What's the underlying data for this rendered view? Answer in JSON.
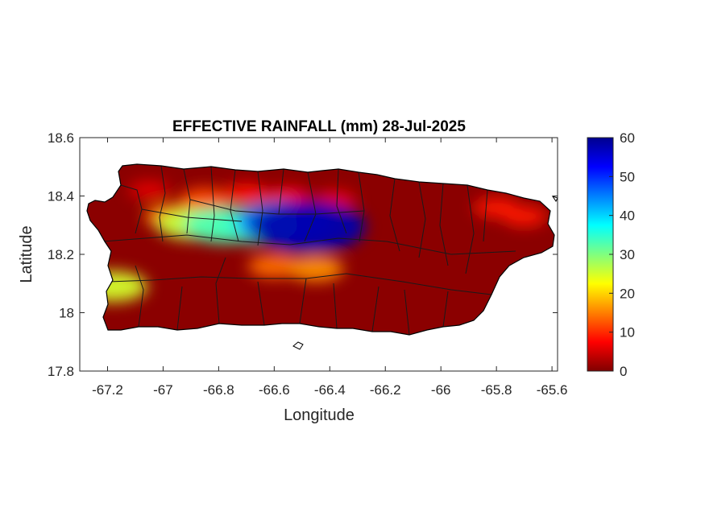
{
  "chart_data": {
    "type": "heatmap",
    "title": "EFFECTIVE RAINFALL (mm) 28-Jul-2025",
    "xlabel": "Longitude",
    "ylabel": "Latitude",
    "xlim": [
      -67.3,
      -65.58
    ],
    "ylim": [
      17.8,
      18.6
    ],
    "x_ticks": [
      "-67.2",
      "-67",
      "-66.8",
      "-66.6",
      "-66.4",
      "-66.2",
      "-66",
      "-65.8",
      "-65.6"
    ],
    "x_tick_values": [
      -67.2,
      -67.0,
      -66.8,
      -66.6,
      -66.4,
      -66.2,
      -66.0,
      -65.8,
      -65.6
    ],
    "y_ticks": [
      "18.6",
      "18.4",
      "18.2",
      "18",
      "17.8"
    ],
    "y_tick_values": [
      18.6,
      18.4,
      18.2,
      18.0,
      17.8
    ],
    "colorbar": {
      "colormap": "jet",
      "range": [
        0,
        60
      ],
      "ticks": [
        "60",
        "50",
        "40",
        "30",
        "20",
        "10",
        "0"
      ],
      "tick_values": [
        60,
        50,
        40,
        30,
        20,
        10,
        0
      ]
    },
    "grid": false,
    "rain_cells": [
      {
        "lon": -66.48,
        "lat": 18.295,
        "value": 58
      },
      {
        "lon": -66.56,
        "lat": 18.31,
        "value": 45
      },
      {
        "lon": -66.66,
        "lat": 18.3,
        "value": 34
      },
      {
        "lon": -66.78,
        "lat": 18.3,
        "value": 33
      },
      {
        "lon": -66.9,
        "lat": 18.305,
        "value": 26
      },
      {
        "lon": -66.97,
        "lat": 18.33,
        "value": 15
      },
      {
        "lon": -66.85,
        "lat": 18.39,
        "value": 12
      },
      {
        "lon": -66.7,
        "lat": 18.41,
        "value": 8
      },
      {
        "lon": -66.55,
        "lat": 18.4,
        "value": 7
      },
      {
        "lon": -66.6,
        "lat": 18.16,
        "value": 14
      },
      {
        "lon": -66.45,
        "lat": 18.15,
        "value": 16
      },
      {
        "lon": -67.18,
        "lat": 18.09,
        "value": 25
      },
      {
        "lon": -66.38,
        "lat": 18.39,
        "value": 6
      },
      {
        "lon": -65.8,
        "lat": 18.36,
        "value": 9
      },
      {
        "lon": -65.7,
        "lat": 18.33,
        "value": 9
      },
      {
        "lon": -67.05,
        "lat": 18.42,
        "value": 6
      }
    ]
  }
}
